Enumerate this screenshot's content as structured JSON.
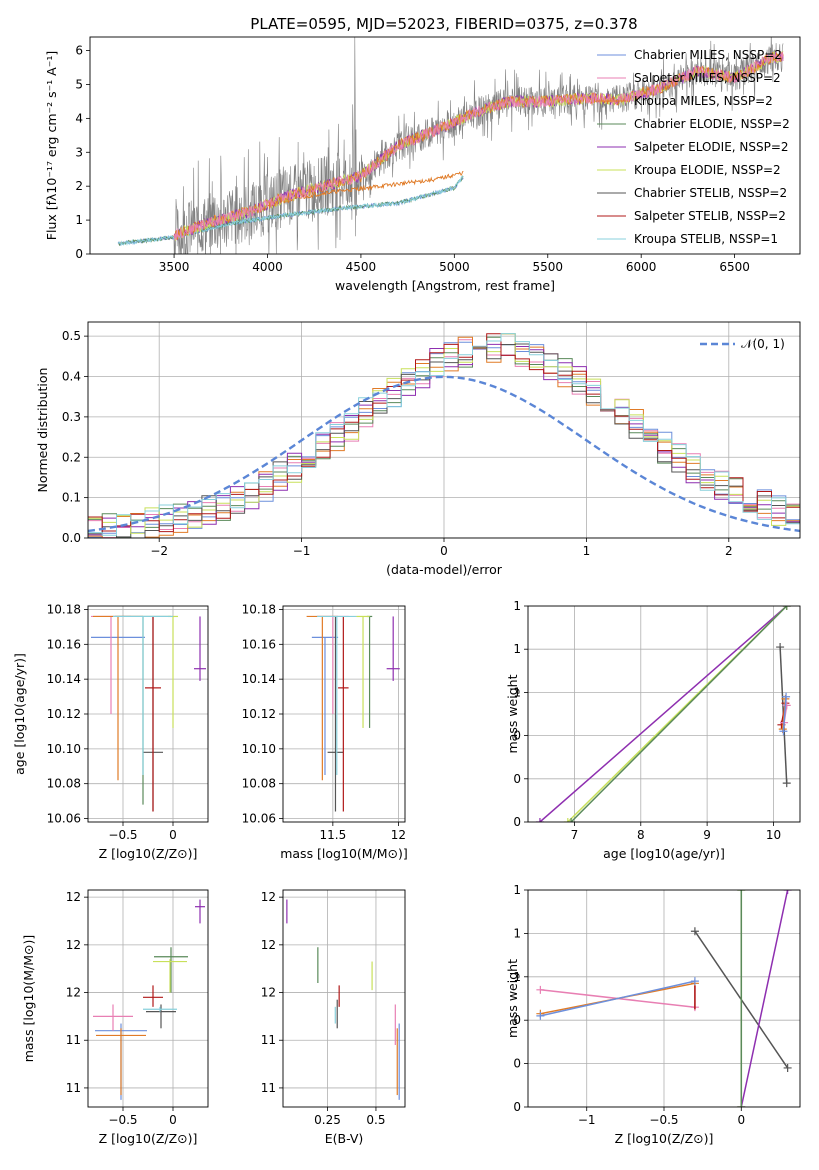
{
  "figure_title": "PLATE=0595, MJD=52023, FIBERID=0375, z=0.378",
  "colors": {
    "chabrier_miles": "#6c8fdc",
    "salpeter_miles": "#e87fb3",
    "kroupa_miles": "#e07b27",
    "chabrier_elodie": "#5a8a5a",
    "salpeter_elodie": "#8e2fb0",
    "kroupa_elodie": "#c8e05a",
    "chabrier_stelib": "#555555",
    "salpeter_stelib": "#b01818",
    "kroupa_stelib": "#88d0dc",
    "data": "#808080",
    "gaussian": "#5b86d6"
  },
  "chart_data": [
    {
      "type": "line",
      "id": "spectrum",
      "xlabel": "wavelength [Angstrom, rest frame]",
      "ylabel": "Flux [fλ10⁻¹⁷ erg cm⁻² s⁻¹ A⁻¹]",
      "xlim": [
        3050,
        6850
      ],
      "ylim": [
        0,
        6.4
      ],
      "xticks": [
        3500,
        4000,
        4500,
        5000,
        5500,
        6000,
        6500
      ],
      "yticks": [
        0,
        1,
        2,
        3,
        4,
        5,
        6
      ],
      "legend": [
        "Chabrier MILES, NSSP=2",
        "Salpeter MILES, NSSP=2",
        "Kroupa MILES, NSSP=2",
        "Chabrier ELODIE, NSSP=2",
        "Salpeter ELODIE, NSSP=2",
        "Kroupa ELODIE, NSSP=2",
        "Chabrier STELIB, NSSP=2",
        "Salpeter STELIB, NSSP=2",
        "Kroupa STELIB, NSSP=1"
      ],
      "legend_placement": "upper-right",
      "continuum_x": [
        3200,
        3500,
        3700,
        3900,
        4100,
        4300,
        4500,
        4700,
        4900,
        5100,
        5300,
        5500,
        5700,
        5900,
        6100,
        6300,
        6500,
        6700
      ],
      "continuum_y": [
        0.3,
        0.55,
        0.95,
        1.25,
        1.7,
        2.0,
        2.3,
        3.2,
        3.65,
        4.15,
        4.5,
        4.5,
        4.6,
        4.55,
        4.9,
        5.4,
        5.2,
        5.8
      ],
      "lowbranch_x": [
        3200,
        3500,
        3800,
        4100,
        4400,
        4700,
        5000,
        5050
      ],
      "lowbranch_y": [
        0.3,
        0.5,
        0.9,
        1.15,
        1.35,
        1.5,
        1.95,
        2.3
      ],
      "midbranch_x": [
        4000,
        4300,
        4600,
        4900,
        5050
      ],
      "midbranch_y": [
        1.45,
        1.8,
        2.0,
        2.2,
        2.4
      ]
    },
    {
      "type": "histogram",
      "id": "residuals",
      "xlabel": "(data-model)/error",
      "ylabel": "Normed distribution",
      "xlim": [
        -2.5,
        2.5
      ],
      "ylim": [
        0,
        0.535
      ],
      "xticks": [
        -2,
        -1,
        0,
        1,
        2
      ],
      "yticks": [
        0.0,
        0.1,
        0.2,
        0.3,
        0.4,
        0.5
      ],
      "gaussian_label": "𝒩(0, 1)",
      "gaussian_mean": 0,
      "gaussian_sigma": 1
    },
    {
      "type": "errorbar",
      "id": "z-age",
      "xlabel": "Z [log10(Z/Z⊙)]",
      "ylabel": "age  [log10(age/yr)]",
      "xlim": [
        -0.85,
        0.35
      ],
      "ylim": [
        10.058,
        10.182
      ],
      "xticks": [
        -0.5,
        0.0
      ],
      "yticks": [
        10.06,
        10.08,
        10.1,
        10.12,
        10.14,
        10.16,
        10.18
      ],
      "points": [
        {
          "s": "chabrier_miles",
          "x": -0.55,
          "y": 10.164,
          "xerr": 0.27,
          "ylo": 10.164,
          "yhi": 10.164
        },
        {
          "s": "salpeter_miles",
          "x": -0.62,
          "y": 10.176,
          "xerr": 0.2,
          "ylo": 10.12,
          "yhi": 10.176
        },
        {
          "s": "kroupa_miles",
          "x": -0.55,
          "y": 10.176,
          "xerr": 0.25,
          "ylo": 10.082,
          "yhi": 10.176
        },
        {
          "s": "chabrier_elodie",
          "x": -0.3,
          "y": 10.176,
          "xerr": 0.28,
          "ylo": 10.068,
          "yhi": 10.176
        },
        {
          "s": "salpeter_elodie",
          "x": 0.27,
          "y": 10.146,
          "xerr": 0.06,
          "ylo": 10.139,
          "yhi": 10.176
        },
        {
          "s": "kroupa_elodie",
          "x": 0.0,
          "y": 10.176,
          "xerr": 0.05,
          "ylo": 10.112,
          "yhi": 10.176
        },
        {
          "s": "chabrier_stelib",
          "x": -0.2,
          "y": 10.098,
          "xerr": 0.1,
          "ylo": 10.064,
          "yhi": 10.176
        },
        {
          "s": "salpeter_stelib",
          "x": -0.2,
          "y": 10.135,
          "xerr": 0.08,
          "ylo": 10.064,
          "yhi": 10.176
        },
        {
          "s": "kroupa_stelib",
          "x": -0.3,
          "y": 10.176,
          "xerr": 0.3,
          "ylo": 10.085,
          "yhi": 10.176
        }
      ]
    },
    {
      "type": "errorbar",
      "id": "mass-age",
      "xlabel": "mass [log10(M/M⊙)]",
      "ylabel": "",
      "xlim": [
        11.12,
        12.05
      ],
      "ylim": [
        10.058,
        10.182
      ],
      "xticks": [
        11.5,
        12.0
      ],
      "yticks": [
        10.06,
        10.08,
        10.1,
        10.12,
        10.14,
        10.16,
        10.18
      ],
      "points": [
        {
          "s": "chabrier_miles",
          "x": 11.44,
          "y": 10.164,
          "xerr": 0.1,
          "ylo": 10.085,
          "yhi": 10.164
        },
        {
          "s": "salpeter_miles",
          "x": 11.5,
          "y": 10.176,
          "xerr": 0.12,
          "ylo": 10.12,
          "yhi": 10.176
        },
        {
          "s": "kroupa_miles",
          "x": 11.42,
          "y": 10.176,
          "xerr": 0.12,
          "ylo": 10.082,
          "yhi": 10.176
        },
        {
          "s": "chabrier_elodie",
          "x": 11.78,
          "y": 10.176,
          "xerr": 0.02,
          "ylo": 10.112,
          "yhi": 10.176
        },
        {
          "s": "salpeter_elodie",
          "x": 11.96,
          "y": 10.146,
          "xerr": 0.05,
          "ylo": 10.139,
          "yhi": 10.176
        },
        {
          "s": "kroupa_elodie",
          "x": 11.73,
          "y": 10.176,
          "xerr": 0.05,
          "ylo": 10.112,
          "yhi": 10.176
        },
        {
          "s": "chabrier_stelib",
          "x": 11.52,
          "y": 10.098,
          "xerr": 0.06,
          "ylo": 10.064,
          "yhi": 10.176
        },
        {
          "s": "salpeter_stelib",
          "x": 11.58,
          "y": 10.135,
          "xerr": 0.04,
          "ylo": 10.064,
          "yhi": 10.176
        },
        {
          "s": "kroupa_stelib",
          "x": 11.53,
          "y": 10.176,
          "xerr": 0.15,
          "ylo": 10.085,
          "yhi": 10.176
        }
      ]
    },
    {
      "type": "line",
      "id": "age-weight",
      "xlabel": "age  [log10(age/yr)]",
      "ylabel": "mass weight",
      "xlim": [
        6.3,
        10.4
      ],
      "ylim": [
        0,
        1.0
      ],
      "xticks": [
        7,
        8,
        9,
        10
      ],
      "yticks": [
        0.0,
        0.2,
        0.4,
        0.6,
        0.8,
        1.0
      ],
      "lines": [
        {
          "s": "salpeter_elodie",
          "x": [
            6.48,
            10.2
          ],
          "y": [
            0.0,
            1.0
          ]
        },
        {
          "s": "kroupa_elodie",
          "x": [
            6.9,
            10.2
          ],
          "y": [
            0.0,
            1.0
          ]
        },
        {
          "s": "chabrier_elodie",
          "x": [
            6.95,
            10.2
          ],
          "y": [
            0.0,
            1.0
          ]
        },
        {
          "s": "chabrier_stelib",
          "x": [
            10.1,
            10.2
          ],
          "y": [
            0.81,
            0.18
          ]
        },
        {
          "s": "salpeter_stelib",
          "x": [
            10.12,
            10.18
          ],
          "y": [
            0.45,
            0.55
          ]
        },
        {
          "s": "kroupa_miles",
          "x": [
            10.14,
            10.18
          ],
          "y": [
            0.43,
            0.57
          ]
        },
        {
          "s": "salpeter_miles",
          "x": [
            10.16,
            10.2
          ],
          "y": [
            0.46,
            0.54
          ]
        },
        {
          "s": "chabrier_miles",
          "x": [
            10.15,
            10.19
          ],
          "y": [
            0.42,
            0.58
          ]
        }
      ]
    },
    {
      "type": "errorbar",
      "id": "z-mass",
      "xlabel": "Z [log10(Z/Z⊙)]",
      "ylabel": "mass [log10(M/M⊙)]",
      "xlim": [
        -0.85,
        0.35
      ],
      "ylim": [
        11.12,
        12.03
      ],
      "xticks": [
        -0.5,
        0.0
      ],
      "yticks": [
        11.2,
        11.4,
        11.6,
        11.8,
        12.0
      ],
      "points": [
        {
          "s": "chabrier_miles",
          "x": -0.52,
          "y": 11.44,
          "xerr": 0.26,
          "ylo": 11.15,
          "yhi": 11.47
        },
        {
          "s": "salpeter_miles",
          "x": -0.6,
          "y": 11.5,
          "xerr": 0.2,
          "ylo": 11.44,
          "yhi": 11.55
        },
        {
          "s": "kroupa_miles",
          "x": -0.52,
          "y": 11.42,
          "xerr": 0.25,
          "ylo": 11.17,
          "yhi": 11.45
        },
        {
          "s": "chabrier_elodie",
          "x": -0.02,
          "y": 11.75,
          "xerr": 0.17,
          "ylo": 11.6,
          "yhi": 11.79
        },
        {
          "s": "salpeter_elodie",
          "x": 0.27,
          "y": 11.96,
          "xerr": 0.05,
          "ylo": 11.89,
          "yhi": 11.99
        },
        {
          "s": "kroupa_elodie",
          "x": -0.03,
          "y": 11.73,
          "xerr": 0.17,
          "ylo": 11.6,
          "yhi": 11.74
        },
        {
          "s": "chabrier_stelib",
          "x": -0.12,
          "y": 11.52,
          "xerr": 0.15,
          "ylo": 11.45,
          "yhi": 11.55
        },
        {
          "s": "salpeter_stelib",
          "x": -0.2,
          "y": 11.58,
          "xerr": 0.1,
          "ylo": 11.54,
          "yhi": 11.63
        },
        {
          "s": "kroupa_stelib",
          "x": -0.13,
          "y": 11.53,
          "xerr": 0.17,
          "ylo": 11.52,
          "yhi": 11.54
        }
      ]
    },
    {
      "type": "errorbar",
      "id": "ebv-mass",
      "xlabel": "E(B-V)",
      "ylabel": "",
      "xlim": [
        0.02,
        0.65
      ],
      "ylim": [
        11.12,
        12.03
      ],
      "xticks": [
        0.25,
        0.5
      ],
      "yticks": [
        11.2,
        11.4,
        11.6,
        11.8,
        12.0
      ],
      "points": [
        {
          "s": "chabrier_miles",
          "x": 0.62,
          "y": 11.4,
          "xerr": 0.0,
          "ylo": 11.15,
          "yhi": 11.47
        },
        {
          "s": "salpeter_miles",
          "x": 0.6,
          "y": 11.45,
          "xerr": 0.0,
          "ylo": 11.38,
          "yhi": 11.55
        },
        {
          "s": "kroupa_miles",
          "x": 0.61,
          "y": 11.3,
          "xerr": 0.0,
          "ylo": 11.17,
          "yhi": 11.45
        },
        {
          "s": "chabrier_elodie",
          "x": 0.2,
          "y": 11.72,
          "xerr": 0.0,
          "ylo": 11.64,
          "yhi": 11.79
        },
        {
          "s": "salpeter_elodie",
          "x": 0.04,
          "y": 11.95,
          "xerr": 0.0,
          "ylo": 11.89,
          "yhi": 11.99
        },
        {
          "s": "kroupa_elodie",
          "x": 0.48,
          "y": 11.67,
          "xerr": 0.0,
          "ylo": 11.61,
          "yhi": 11.73
        },
        {
          "s": "chabrier_stelib",
          "x": 0.3,
          "y": 11.5,
          "xerr": 0.0,
          "ylo": 11.45,
          "yhi": 11.57
        },
        {
          "s": "salpeter_stelib",
          "x": 0.31,
          "y": 11.58,
          "xerr": 0.0,
          "ylo": 11.54,
          "yhi": 11.63
        },
        {
          "s": "kroupa_stelib",
          "x": 0.29,
          "y": 11.5,
          "xerr": 0.0,
          "ylo": 11.47,
          "yhi": 11.54
        }
      ]
    },
    {
      "type": "line",
      "id": "z-weight",
      "xlabel": "Z [log10(Z/Z⊙)]",
      "ylabel": "mass weight",
      "xlim": [
        -1.38,
        0.38
      ],
      "ylim": [
        0,
        1.0
      ],
      "xticks": [
        -1.0,
        -0.5,
        0.0
      ],
      "yticks": [
        0.0,
        0.2,
        0.4,
        0.6,
        0.8,
        1.0
      ],
      "lines": [
        {
          "s": "salpeter_miles",
          "x": [
            -1.3,
            -0.3
          ],
          "y": [
            0.54,
            0.46
          ]
        },
        {
          "s": "kroupa_miles",
          "x": [
            -1.3,
            -0.3
          ],
          "y": [
            0.43,
            0.57
          ]
        },
        {
          "s": "chabrier_miles",
          "x": [
            -1.3,
            -0.3
          ],
          "y": [
            0.42,
            0.58
          ]
        },
        {
          "s": "chabrier_stelib",
          "x": [
            -0.3,
            0.3
          ],
          "y": [
            0.81,
            0.18
          ]
        },
        {
          "s": "salpeter_elodie",
          "x": [
            0.0,
            0.3
          ],
          "y": [
            0.0,
            1.0
          ]
        },
        {
          "s": "kroupa_elodie",
          "x": [
            0.0,
            0.0
          ],
          "y": [
            0.0,
            1.0
          ]
        },
        {
          "s": "chabrier_elodie",
          "x": [
            0.0,
            0.0
          ],
          "y": [
            0.0,
            1.0
          ]
        }
      ],
      "errbars": [
        {
          "s": "salpeter_stelib",
          "x": -0.3,
          "ylo": 0.45,
          "yhi": 0.56
        }
      ]
    }
  ]
}
